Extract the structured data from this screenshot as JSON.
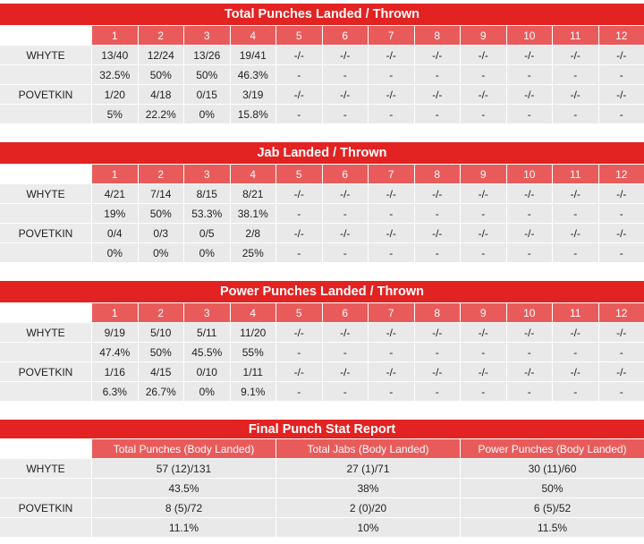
{
  "rounds": [
    "1",
    "2",
    "3",
    "4",
    "5",
    "6",
    "7",
    "8",
    "9",
    "10",
    "11",
    "12"
  ],
  "sections": [
    {
      "title": "Total Punches Landed / Thrown",
      "rows": [
        {
          "name": "WHYTE",
          "values": [
            "13/40",
            "12/24",
            "13/26",
            "19/41",
            "-/-",
            "-/-",
            "-/-",
            "-/-",
            "-/-",
            "-/-",
            "-/-",
            "-/-"
          ]
        },
        {
          "name": "",
          "values": [
            "32.5%",
            "50%",
            "50%",
            "46.3%",
            "-",
            "-",
            "-",
            "-",
            "-",
            "-",
            "-",
            "-"
          ]
        },
        {
          "name": "POVETKIN",
          "values": [
            "1/20",
            "4/18",
            "0/15",
            "3/19",
            "-/-",
            "-/-",
            "-/-",
            "-/-",
            "-/-",
            "-/-",
            "-/-",
            "-/-"
          ]
        },
        {
          "name": "",
          "values": [
            "5%",
            "22.2%",
            "0%",
            "15.8%",
            "-",
            "-",
            "-",
            "-",
            "-",
            "-",
            "-",
            "-"
          ]
        }
      ]
    },
    {
      "title": "Jab Landed / Thrown",
      "rows": [
        {
          "name": "WHYTE",
          "values": [
            "4/21",
            "7/14",
            "8/15",
            "8/21",
            "-/-",
            "-/-",
            "-/-",
            "-/-",
            "-/-",
            "-/-",
            "-/-",
            "-/-"
          ]
        },
        {
          "name": "",
          "values": [
            "19%",
            "50%",
            "53.3%",
            "38.1%",
            "-",
            "-",
            "-",
            "-",
            "-",
            "-",
            "-",
            "-"
          ]
        },
        {
          "name": "POVETKIN",
          "values": [
            "0/4",
            "0/3",
            "0/5",
            "2/8",
            "-/-",
            "-/-",
            "-/-",
            "-/-",
            "-/-",
            "-/-",
            "-/-",
            "-/-"
          ]
        },
        {
          "name": "",
          "values": [
            "0%",
            "0%",
            "0%",
            "25%",
            "-",
            "-",
            "-",
            "-",
            "-",
            "-",
            "-",
            "-"
          ]
        }
      ]
    },
    {
      "title": "Power Punches Landed / Thrown",
      "rows": [
        {
          "name": "WHYTE",
          "values": [
            "9/19",
            "5/10",
            "5/11",
            "11/20",
            "-/-",
            "-/-",
            "-/-",
            "-/-",
            "-/-",
            "-/-",
            "-/-",
            "-/-"
          ]
        },
        {
          "name": "",
          "values": [
            "47.4%",
            "50%",
            "45.5%",
            "55%",
            "-",
            "-",
            "-",
            "-",
            "-",
            "-",
            "-",
            "-"
          ]
        },
        {
          "name": "POVETKIN",
          "values": [
            "1/16",
            "4/15",
            "0/10",
            "1/11",
            "-/-",
            "-/-",
            "-/-",
            "-/-",
            "-/-",
            "-/-",
            "-/-",
            "-/-"
          ]
        },
        {
          "name": "",
          "values": [
            "6.3%",
            "26.7%",
            "0%",
            "9.1%",
            "-",
            "-",
            "-",
            "-",
            "-",
            "-",
            "-",
            "-"
          ]
        }
      ]
    }
  ],
  "final": {
    "title": "Final Punch Stat Report",
    "columns": [
      "Total Punches (Body Landed)",
      "Total Jabs (Body Landed)",
      "Power Punches (Body Landed)"
    ],
    "rows": [
      {
        "name": "WHYTE",
        "values": [
          "57 (12)/131",
          "27 (1)/71",
          "30 (11)/60"
        ]
      },
      {
        "name": "",
        "values": [
          "43.5%",
          "38%",
          "50%"
        ]
      },
      {
        "name": "POVETKIN",
        "values": [
          "8 (5)/72",
          "2 (0)/20",
          "6 (5)/52"
        ]
      },
      {
        "name": "",
        "values": [
          "11.1%",
          "10%",
          "11.5%"
        ]
      }
    ]
  }
}
